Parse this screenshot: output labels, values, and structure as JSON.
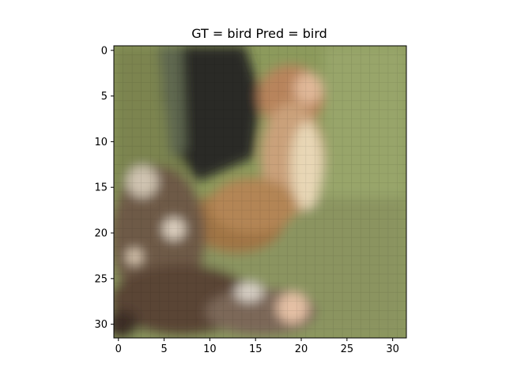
{
  "figure": {
    "title": "GT = bird Pred = bird"
  },
  "image": {
    "subject": "bird",
    "description_icon": "pixelated-bird-image",
    "grid_size": 32,
    "x_ticks": [
      "0",
      "5",
      "10",
      "15",
      "20",
      "25",
      "30"
    ],
    "y_ticks": [
      "0",
      "5",
      "10",
      "15",
      "20",
      "25",
      "30"
    ],
    "x_tick_values": [
      0,
      5,
      10,
      15,
      20,
      25,
      30
    ],
    "y_tick_values": [
      0,
      5,
      10,
      15,
      20,
      25,
      30
    ],
    "palette": {
      "background_green": "#8c9a5c",
      "bark_dark": "#2c2a25",
      "bird_orange": "#c79260",
      "bird_light": "#e8d7b6",
      "branch_brown": "#6e5a46"
    }
  }
}
